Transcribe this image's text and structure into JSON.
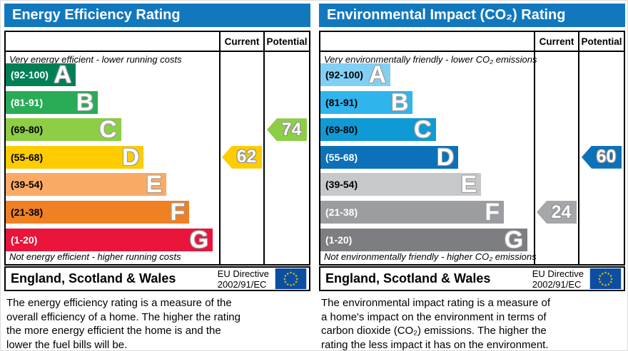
{
  "accent_colors": {
    "header_blue": "#1278be",
    "eu_flag_blue": "#0b4ea2",
    "eu_flag_star_yellow": "#ffcc00"
  },
  "chart_data": [
    {
      "type": "bar",
      "title": "Energy Efficiency Rating",
      "columns": {
        "current": "Current",
        "potential": "Potential"
      },
      "top_note": "Very energy efficient - lower running costs",
      "bottom_note": "Not energy efficient - higher running costs",
      "xlim": [
        1,
        100
      ],
      "bands": [
        {
          "grade": "A",
          "range": "(92-100)",
          "min": 92,
          "max": 100,
          "color": "#008054",
          "label_color": "#ffffff",
          "width_pct": 33.0
        },
        {
          "grade": "B",
          "range": "(81-91)",
          "min": 81,
          "max": 91,
          "color": "#2aab58",
          "label_color": "#ffffff",
          "width_pct": 43.6
        },
        {
          "grade": "C",
          "range": "(69-80)",
          "min": 69,
          "max": 80,
          "color": "#8dce46",
          "label_color": "#000000",
          "width_pct": 54.4
        },
        {
          "grade": "D",
          "range": "(55-68)",
          "min": 55,
          "max": 68,
          "color": "#ffcc00",
          "label_color": "#000000",
          "width_pct": 65.1
        },
        {
          "grade": "E",
          "range": "(39-54)",
          "min": 39,
          "max": 54,
          "color": "#fbaa65",
          "label_color": "#000000",
          "width_pct": 75.8
        },
        {
          "grade": "F",
          "range": "(21-38)",
          "min": 21,
          "max": 38,
          "color": "#ef8023",
          "label_color": "#000000",
          "width_pct": 86.6
        },
        {
          "grade": "G",
          "range": "(1-20)",
          "min": 1,
          "max": 20,
          "color": "#e9153b",
          "label_color": "#ffffff",
          "width_pct": 97.7
        }
      ],
      "current": {
        "value": 62,
        "band": "D",
        "color": "#ffcc00"
      },
      "potential": {
        "value": 74,
        "band": "C",
        "color": "#8dce46"
      },
      "footer": {
        "region": "England, Scotland & Wales",
        "directive": "EU Directive\n2002/91/EC"
      },
      "description": "The energy efficiency rating is a measure of the\noverall efficiency of a home. The higher the rating\nthe more energy efficient the home is and the\nlower the fuel bills will be."
    },
    {
      "type": "bar",
      "title": "Environmental Impact (CO₂) Rating",
      "columns": {
        "current": "Current",
        "potential": "Potential"
      },
      "top_note": "Very environmentally friendly - lower CO₂ emissions",
      "bottom_note": "Not environmentally friendly - higher CO₂ emissions",
      "xlim": [
        1,
        100
      ],
      "bands": [
        {
          "grade": "A",
          "range": "(92-100)",
          "min": 92,
          "max": 100,
          "color": "#82cff4",
          "label_color": "#000000",
          "width_pct": 33.0
        },
        {
          "grade": "B",
          "range": "(81-91)",
          "min": 81,
          "max": 91,
          "color": "#30b4ec",
          "label_color": "#000000",
          "width_pct": 43.6
        },
        {
          "grade": "C",
          "range": "(69-80)",
          "min": 69,
          "max": 80,
          "color": "#0f9ad5",
          "label_color": "#000000",
          "width_pct": 54.4
        },
        {
          "grade": "D",
          "range": "(55-68)",
          "min": 55,
          "max": 68,
          "color": "#0c71b8",
          "label_color": "#ffffff",
          "width_pct": 65.1
        },
        {
          "grade": "E",
          "range": "(39-54)",
          "min": 39,
          "max": 54,
          "color": "#c7c8ca",
          "label_color": "#000000",
          "width_pct": 75.8
        },
        {
          "grade": "F",
          "range": "(21-38)",
          "min": 21,
          "max": 38,
          "color": "#9b9da0",
          "label_color": "#ffffff",
          "width_pct": 86.6
        },
        {
          "grade": "G",
          "range": "(1-20)",
          "min": 1,
          "max": 20,
          "color": "#7d7e81",
          "label_color": "#ffffff",
          "width_pct": 97.7
        }
      ],
      "current": {
        "value": 24,
        "band": "F",
        "color": "#a5a7aa"
      },
      "potential": {
        "value": 60,
        "band": "D",
        "color": "#0c71b8"
      },
      "footer": {
        "region": "England, Scotland & Wales",
        "directive": "EU Directive\n2002/91/EC"
      },
      "description": "The environmental impact rating is a measure of\na home's impact on the environment in terms of\ncarbon dioxide (CO₂) emissions. The higher the\nrating the less impact it has on the environment."
    }
  ]
}
